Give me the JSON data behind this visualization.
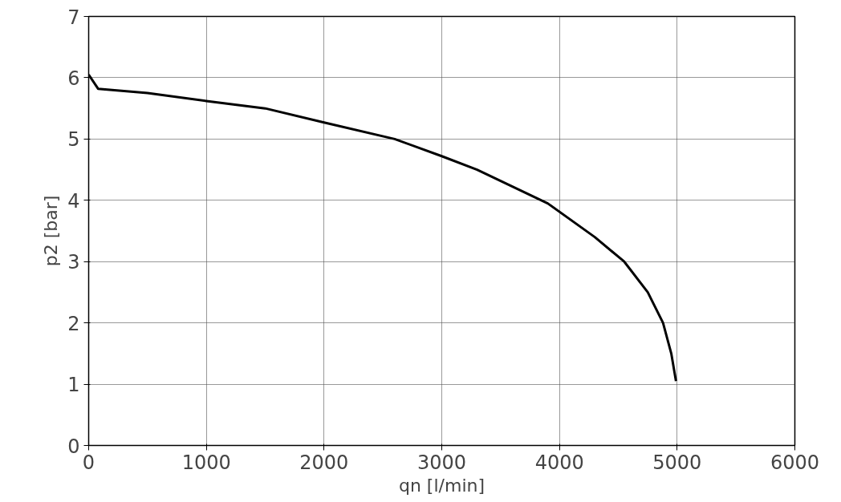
{
  "chart_data": {
    "type": "line",
    "xlabel": "qn [l/min]",
    "ylabel": "p2 [bar]",
    "x": [
      0,
      80,
      500,
      1000,
      1500,
      2000,
      2600,
      3000,
      3300,
      3900,
      4300,
      4550,
      4750,
      4880,
      4950,
      4990
    ],
    "series": [
      {
        "color": "#000000",
        "values": [
          6.05,
          5.82,
          5.75,
          5.62,
          5.5,
          5.27,
          5.0,
          4.72,
          4.5,
          3.95,
          3.4,
          3.0,
          2.5,
          2.0,
          1.5,
          1.05
        ]
      }
    ],
    "xlim": [
      0,
      6000
    ],
    "ylim": [
      0,
      7
    ],
    "xticks": [
      0,
      1000,
      2000,
      3000,
      4000,
      5000,
      6000
    ],
    "yticks": [
      0,
      1,
      2,
      3,
      4,
      5,
      6,
      7
    ],
    "grid": true,
    "marker": "none",
    "line_style": "solid"
  }
}
